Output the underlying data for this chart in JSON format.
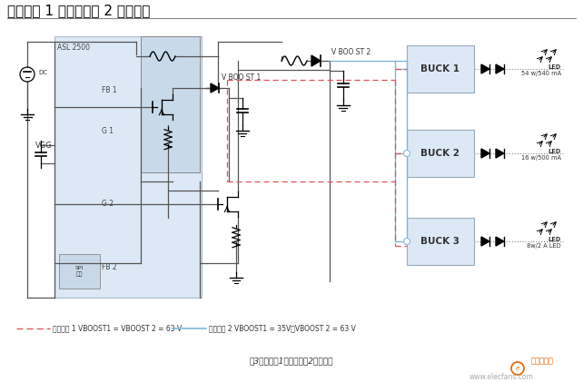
{
  "title": "解决方案 1 和解决方案 2 的示意图",
  "bg_color": "#ffffff",
  "title_fontsize": 11,
  "title_color": "#000000",
  "caption": "图3解决方案1和解决方案2的示意图",
  "watermark": "www.elecfans.com",
  "legend1_text": "解决方案 1 VBOOST1 = VBOOST 2 = 63 V",
  "legend2_text": "解决方案 2 VBOOST1 = 35V，VBOOST 2 = 63 V",
  "buck_labels": [
    "BUCK 1",
    "BUCK 2",
    "BUCK 3"
  ],
  "buck_sub1": "54 w/540 mA",
  "buck_sub2": "16 w/500 mA",
  "buck_sub3": "8w/2 A LED",
  "led_label": "LED",
  "asl_label": "ASL 2500",
  "ic_label": "VGG",
  "spi_label": "SPI\n接口",
  "fb1_label": "FB 1",
  "fb2_label": "FB 2",
  "g1_label": "G 1",
  "g2_label": "G 2",
  "vboost1_label": "V BOO ST 1",
  "vboost2_label": "V BOO ST 2",
  "dc_label": "DC",
  "ic_box_color": "#dce8f5",
  "ic_border_color": "#aabccc",
  "buck_box_color": "#dce8f5",
  "buck_border_color": "#99aabb",
  "red_color": "#e05555",
  "blue_color": "#80b8d8",
  "wire_color": "#555555",
  "logo_color": "#dd6600"
}
